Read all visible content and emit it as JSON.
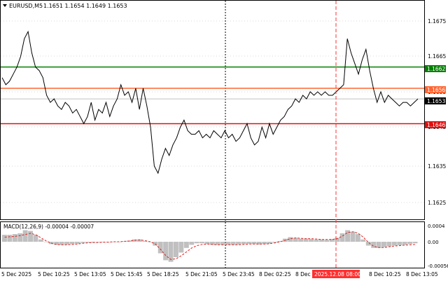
{
  "header": {
    "menu_icon": "triangle-down-icon",
    "symbol": "EURUSD,M5",
    "ohlc": "1.1651 1.1654 1.1649 1.1653"
  },
  "macd": {
    "label": "MACD(12,26,9) -0.00004 -0.00007",
    "y_ticks": [
      "0.0004",
      "0.00",
      "-0.00056"
    ]
  },
  "price_axis": {
    "ticks": [
      "1.1675",
      "1.1665",
      "1.1655",
      "1.1645",
      "1.1635",
      "1.1625"
    ]
  },
  "levels": [
    {
      "name": "green-level",
      "value": "1.1662",
      "color": "#008000"
    },
    {
      "name": "orange-level",
      "value": "1.1656",
      "color": "#ff6633"
    },
    {
      "name": "bid-level",
      "value": "1.1653",
      "color": "#c0c0c0"
    },
    {
      "name": "red-level",
      "value": "1.1646",
      "color": "#e01010"
    }
  ],
  "time_axis": {
    "ticks": [
      "5 Dec 2025",
      "5 Dec 10:25",
      "5 Dec 13:05",
      "5 Dec 15:45",
      "5 Dec 18:25",
      "5 Dec 21:05",
      "5 Dec 23:45",
      "8 Dec 02:25",
      "8 Dec 0",
      "8 Dec 10:25",
      "8 Dec 13:05"
    ],
    "highlight": "2025.12.08 08:00"
  },
  "colors": {
    "price_line": "#000000",
    "histogram": "#c0c0c0",
    "signal": "#e02020",
    "grid": "#d8d8d8",
    "separator": "#000000"
  },
  "chart_data": {
    "type": "line",
    "price_series": [
      1.1659,
      1.1657,
      1.1658,
      1.166,
      1.1662,
      1.1665,
      1.167,
      1.1672,
      1.1666,
      1.1662,
      1.1661,
      1.1659,
      1.1654,
      1.1652,
      1.1653,
      1.1651,
      1.165,
      1.1652,
      1.1651,
      1.1649,
      1.165,
      1.1648,
      1.1646,
      1.1648,
      1.1652,
      1.1647,
      1.165,
      1.1649,
      1.1652,
      1.1648,
      1.1651,
      1.1653,
      1.1657,
      1.1654,
      1.1655,
      1.1652,
      1.1656,
      1.165,
      1.1656,
      1.1651,
      1.1645,
      1.1634,
      1.1632,
      1.1636,
      1.1639,
      1.1637,
      1.164,
      1.1642,
      1.1645,
      1.1647,
      1.1644,
      1.1643,
      1.1643,
      1.1644,
      1.1642,
      1.1643,
      1.1642,
      1.1644,
      1.1643,
      1.1642,
      1.1644,
      1.1642,
      1.1643,
      1.1641,
      1.1642,
      1.1644,
      1.1646,
      1.1642,
      1.164,
      1.1641,
      1.1645,
      1.1642,
      1.1646,
      1.1643,
      1.1645,
      1.1647,
      1.1648,
      1.165,
      1.1651,
      1.1653,
      1.1652,
      1.1654,
      1.1653,
      1.1655,
      1.1654,
      1.1655,
      1.1654,
      1.1655,
      1.1654,
      1.1654,
      1.1655,
      1.1656,
      1.1657,
      1.167,
      1.1666,
      1.1663,
      1.166,
      1.1664,
      1.1667,
      1.1661,
      1.1656,
      1.1652,
      1.1655,
      1.1652,
      1.1654,
      1.1653,
      1.1652,
      1.1651,
      1.1652,
      1.1652,
      1.1651,
      1.1652,
      1.1653
    ],
    "macd_histogram": [
      0.00018,
      0.00018,
      0.0002,
      0.00022,
      0.0003,
      0.00028,
      0.00018,
      6e-05,
      0.0,
      -6e-05,
      -8e-05,
      -8e-05,
      -7e-05,
      -6e-05,
      -5e-05,
      -3e-05,
      -2e-05,
      -2e-05,
      -1e-05,
      -1e-05,
      0.0,
      0.0,
      0.0,
      1e-05,
      3e-05,
      6e-05,
      6e-05,
      2e-05,
      0.0,
      -0.0001,
      -0.0003,
      -0.00048,
      -0.00052,
      -0.0004,
      -0.00028,
      -0.00016,
      -8e-05,
      -4e-05,
      -4e-05,
      -6e-05,
      -8e-05,
      -8e-05,
      -8e-05,
      -8e-05,
      -8e-05,
      -7e-05,
      -6e-05,
      -5e-05,
      -6e-05,
      -7e-05,
      -6e-05,
      -5e-05,
      -2e-05,
      2e-05,
      8e-05,
      0.00012,
      0.0001,
      8e-05,
      8e-05,
      7e-05,
      6e-05,
      6e-05,
      5e-05,
      7e-05,
      0.0001,
      0.00022,
      0.0003,
      0.00026,
      0.0002,
      6e-05,
      -0.0001,
      -0.00016,
      -0.00016,
      -0.00014,
      -0.00012,
      -0.0001,
      -9e-05,
      -8e-05,
      -6e-05,
      -4e-05
    ],
    "macd_signal": [
      0.00012,
      0.00013,
      0.00014,
      0.00016,
      0.00019,
      0.00022,
      0.00018,
      0.0001,
      2e-05,
      -4e-05,
      -7e-05,
      -8e-05,
      -8e-05,
      -7e-05,
      -6e-05,
      -4e-05,
      -3e-05,
      -2e-05,
      -2e-05,
      -1e-05,
      -1e-05,
      0.0,
      0.0,
      1e-05,
      2e-05,
      4e-05,
      5e-05,
      3e-05,
      0.0,
      -6e-05,
      -0.0002,
      -0.00036,
      -0.00046,
      -0.00044,
      -0.00036,
      -0.00026,
      -0.00016,
      -0.0001,
      -7e-05,
      -6e-05,
      -7e-05,
      -8e-05,
      -8e-05,
      -8e-05,
      -8e-05,
      -8e-05,
      -7e-05,
      -6e-05,
      -6e-05,
      -6e-05,
      -6e-05,
      -5e-05,
      -3e-05,
      0.0,
      4e-05,
      8e-05,
      0.0001,
      9e-05,
      8e-05,
      8e-05,
      7e-05,
      6e-05,
      6e-05,
      6e-05,
      8e-05,
      0.00015,
      0.00024,
      0.00026,
      0.00022,
      0.00012,
      -2e-05,
      -0.00012,
      -0.00015,
      -0.00015,
      -0.00013,
      -0.00011,
      -0.0001,
      -9e-05,
      -8e-05,
      -7e-05
    ]
  }
}
